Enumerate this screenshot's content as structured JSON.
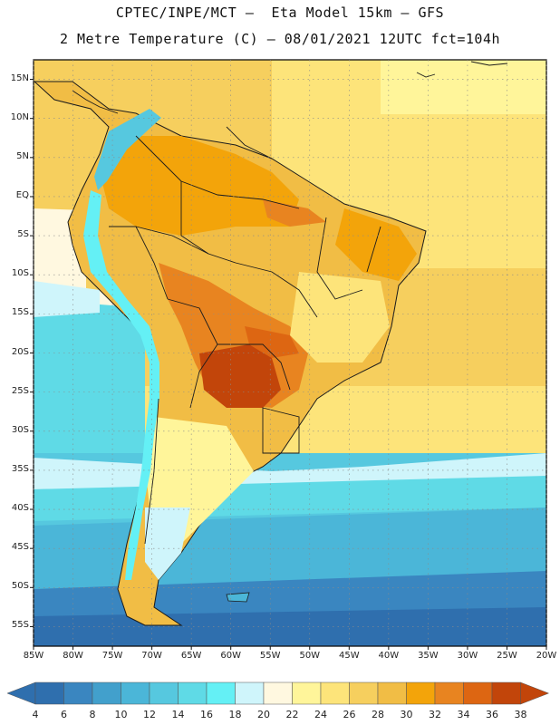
{
  "header": {
    "line1": "CPTEC/INPE/MCT –  Eta Model 15km – GFS",
    "line2": "2 Metre Temperature (C) – 08/01/2021 12UTC fct=104h"
  },
  "axes": {
    "lat_labels": [
      "15N",
      "10N",
      "5N",
      "EQ",
      "5S",
      "10S",
      "15S",
      "20S",
      "25S",
      "30S",
      "35S",
      "40S",
      "45S",
      "50S",
      "55S"
    ],
    "lon_labels": [
      "85W",
      "80W",
      "75W",
      "70W",
      "65W",
      "60W",
      "55W",
      "50W",
      "45W",
      "40W",
      "35W",
      "30W",
      "25W",
      "20W"
    ],
    "lat_range": [
      17.5,
      -57.5
    ],
    "lon_range": [
      -85,
      -20
    ]
  },
  "colorbar": {
    "labels": [
      "4",
      "6",
      "8",
      "10",
      "12",
      "14",
      "16",
      "18",
      "20",
      "22",
      "24",
      "26",
      "28",
      "30",
      "32",
      "34",
      "36",
      "38"
    ],
    "colors": [
      "#2f6fae",
      "#3a86c0",
      "#42a0cc",
      "#4bb6d8",
      "#56c8df",
      "#5fdae6",
      "#64f0f5",
      "#cff5fb",
      "#fff8e0",
      "#fff59a",
      "#fde47a",
      "#f6cf5e",
      "#f1bd45",
      "#f3a40a",
      "#e88420",
      "#dd6612",
      "#c2450a"
    ],
    "arrow_left_color": "#2f6fae",
    "arrow_right_color": "#c2450a"
  }
}
